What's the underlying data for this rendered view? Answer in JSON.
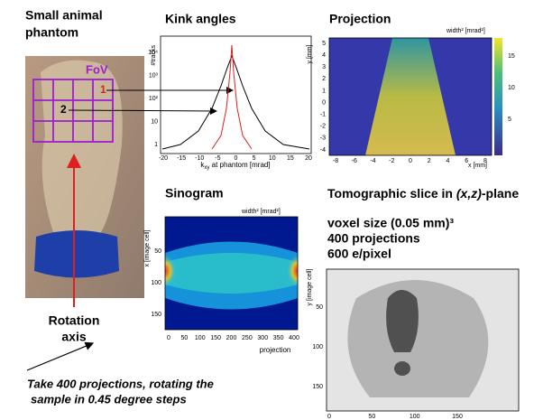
{
  "phantom": {
    "title": [
      "Small animal",
      "phantom"
    ],
    "fov": "FoV",
    "regions": [
      "1",
      "2"
    ],
    "rotation_axis": [
      "Rotation",
      "axis"
    ]
  },
  "kink": {
    "title": "Kink angles",
    "ylabel": "#tracks",
    "xlabel": {
      "main": "k",
      "sub": "xy",
      "rest": " at phantom [mrad]"
    },
    "xticks": [
      "-20",
      "-15",
      "-10",
      "-5",
      "0",
      "5",
      "10",
      "15",
      "20"
    ],
    "yticks": [
      "10⁴",
      "10³",
      "10²",
      "10",
      "1"
    ]
  },
  "projection": {
    "title": "Projection",
    "colorbar_label": "width² [mrad²]",
    "ylabel": "y [mm]",
    "xlabel": "x [mm]",
    "xticks": [
      "-8",
      "-6",
      "-4",
      "-2",
      "0",
      "2",
      "4",
      "6",
      "8"
    ],
    "yticks": [
      "5",
      "4",
      "3",
      "2",
      "1",
      "0",
      "-1",
      "-2",
      "-3",
      "-4"
    ],
    "cbticks": [
      "15",
      "10",
      "5"
    ]
  },
  "sinogram": {
    "title": "Sinogram",
    "colorbar_label": "width² [mrad²]",
    "ylabel": "x [image cell]",
    "xlabel": "projection",
    "xticks": [
      "0",
      "50",
      "100",
      "150",
      "200",
      "250",
      "300",
      "350",
      "400"
    ],
    "yticks": [
      "50",
      "100",
      "150"
    ]
  },
  "slice": {
    "title": [
      "Tomographic slice in ",
      "(x,z)",
      "-plane"
    ],
    "info": [
      "voxel size (0.05 mm)³",
      "400 projections",
      "600 e/pixel"
    ],
    "ylabel": "y [image cell]",
    "yticks": [
      "50",
      "100",
      "150"
    ],
    "xticks": [
      "0",
      "50",
      "100",
      "150"
    ]
  },
  "caption": [
    "Take 400 projections, rotating the",
    "sample in 0.45 degree steps"
  ]
}
